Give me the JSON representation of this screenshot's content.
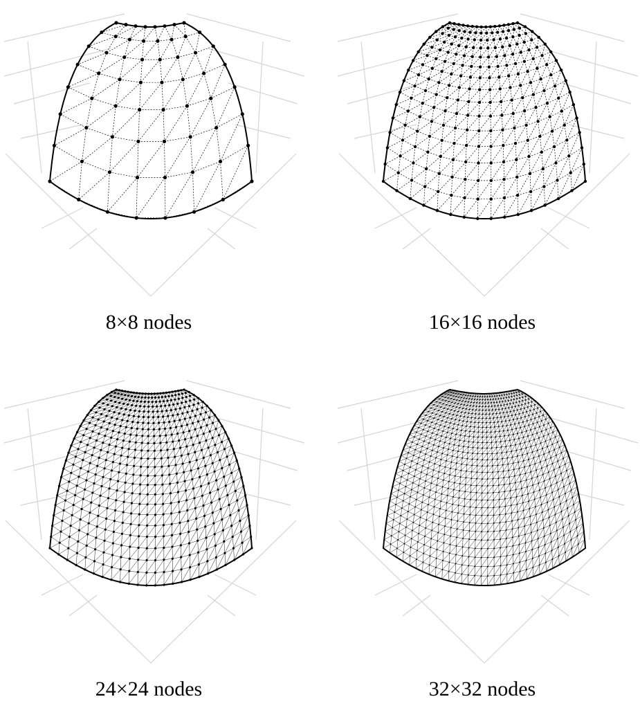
{
  "colors": {
    "axes": "#d4d4d4",
    "mesh": "#000000",
    "background": "#ffffff"
  },
  "panels": [
    {
      "nodes": 8,
      "caption": "8×8 nodes"
    },
    {
      "nodes": 16,
      "caption": "16×16 nodes"
    },
    {
      "nodes": 24,
      "caption": "24×24 nodes"
    },
    {
      "nodes": 32,
      "caption": "32×32 nodes"
    }
  ]
}
